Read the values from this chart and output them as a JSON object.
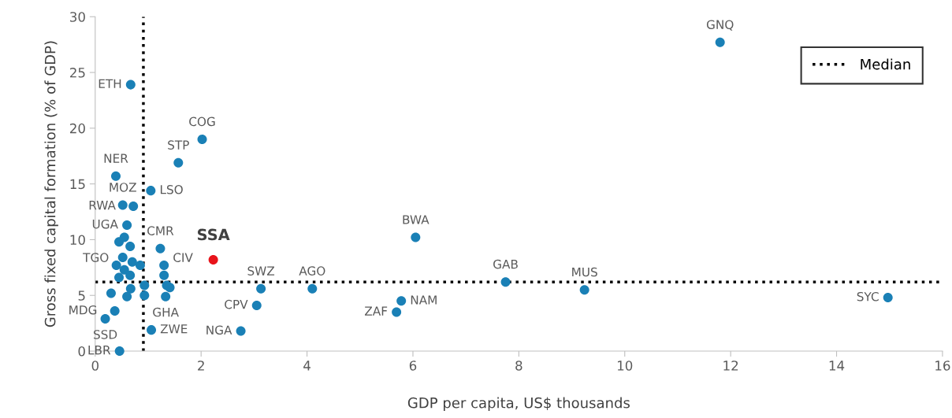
{
  "chart_data": {
    "type": "scatter",
    "xlabel": "GDP per capita, US$ thousands",
    "ylabel": "Gross fixed capital formation (% of GDP)",
    "xlim": [
      0,
      16
    ],
    "xticks": [
      0,
      2,
      4,
      6,
      8,
      10,
      12,
      14,
      16
    ],
    "ylim": [
      0,
      30
    ],
    "yticks": [
      0,
      5,
      10,
      15,
      20,
      25,
      30
    ],
    "grid": false,
    "legend": "top right",
    "marker": "circle",
    "series": [
      {
        "color": "#1a80b6",
        "x": [
          11.8,
          0.67,
          2.02,
          1.57,
          0.39,
          1.05,
          0.52,
          0.72,
          0.6,
          0.55,
          1.23,
          0.45,
          0.66,
          0.52,
          0.7,
          0.85,
          0.4,
          0.55,
          0.45,
          0.66,
          1.3,
          1.3,
          1.35,
          1.41,
          0.93,
          0.67,
          0.6,
          0.93,
          1.33,
          0.3,
          0.37,
          0.19,
          1.06,
          0.46,
          3.13,
          3.05,
          2.75,
          4.1,
          6.05,
          5.78,
          5.69,
          7.75,
          9.24,
          14.97
        ],
        "values": [
          27.7,
          23.9,
          19.0,
          16.9,
          15.7,
          14.4,
          13.1,
          13.0,
          11.3,
          10.2,
          9.2,
          9.8,
          9.4,
          8.4,
          8.0,
          7.7,
          7.7,
          7.3,
          6.6,
          6.8,
          7.7,
          6.8,
          5.9,
          5.7,
          5.9,
          5.6,
          4.9,
          5.0,
          4.9,
          5.2,
          3.6,
          2.9,
          1.9,
          0,
          5.6,
          4.1,
          1.8,
          5.6,
          10.2,
          4.5,
          3.5,
          6.2,
          5.5,
          4.8
        ]
      },
      {
        "name": "SSA",
        "color": "#e8141b",
        "x": [
          2.23
        ],
        "values": [
          8.2
        ]
      }
    ],
    "ref_lines": [
      {
        "axis": "x",
        "value": 0.91,
        "label": "Median",
        "color": "#000000",
        "line_style": "dotted"
      },
      {
        "axis": "y",
        "value": 6.2,
        "label": null,
        "color": "#000000",
        "line_style": "dotted"
      }
    ],
    "annotations": [
      {
        "text": "GNQ",
        "x": 11.8,
        "y": 27.7
      },
      {
        "text": "ETH",
        "x": 0.67,
        "y": 23.9
      },
      {
        "text": "COG",
        "x": 2.02,
        "y": 19.0
      },
      {
        "text": "STP",
        "x": 1.57,
        "y": 16.9
      },
      {
        "text": "NER",
        "x": 0.39,
        "y": 15.7
      },
      {
        "text": "LSO",
        "x": 1.05,
        "y": 14.4
      },
      {
        "text": "MOZ",
        "x": 0.52,
        "y": 13.1
      },
      {
        "text": "RWA",
        "x": 0.72,
        "y": 13.0
      },
      {
        "text": "UGA",
        "x": 0.6,
        "y": 11.3
      },
      {
        "text": "TGO",
        "x": 0.55,
        "y": 10.2
      },
      {
        "text": "CMR",
        "x": 1.23,
        "y": 9.2
      },
      {
        "text": "CIV",
        "x": 1.3,
        "y": 6.8
      },
      {
        "text": "GHA",
        "x": 1.33,
        "y": 4.9
      },
      {
        "text": "MDG",
        "x": 0.37,
        "y": 3.6
      },
      {
        "text": "SSD",
        "x": 0.19,
        "y": 2.9
      },
      {
        "text": "ZWE",
        "x": 1.06,
        "y": 1.9
      },
      {
        "text": "LBR",
        "x": 0.46,
        "y": 0
      },
      {
        "text": "SWZ",
        "x": 3.13,
        "y": 5.6
      },
      {
        "text": "CPV",
        "x": 3.05,
        "y": 4.1
      },
      {
        "text": "NGA",
        "x": 2.75,
        "y": 1.8
      },
      {
        "text": "AGO",
        "x": 4.1,
        "y": 5.6
      },
      {
        "text": "BWA",
        "x": 6.05,
        "y": 10.2
      },
      {
        "text": "NAM",
        "x": 5.78,
        "y": 4.5
      },
      {
        "text": "ZAF",
        "x": 5.69,
        "y": 3.5
      },
      {
        "text": "GAB",
        "x": 7.75,
        "y": 6.2
      },
      {
        "text": "MUS",
        "x": 9.24,
        "y": 5.5
      },
      {
        "text": "SYC",
        "x": 14.97,
        "y": 4.8
      }
    ]
  }
}
